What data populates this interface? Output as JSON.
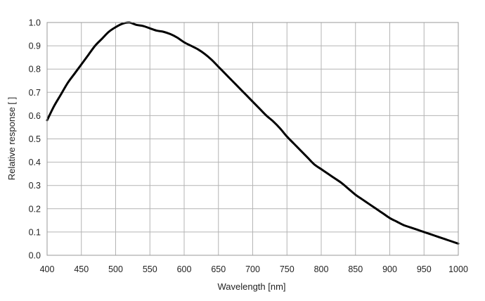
{
  "chart_data": {
    "type": "line",
    "title": "",
    "xlabel": "Wavelength [nm]",
    "ylabel": "Relative response [ ]",
    "xlim": [
      400,
      1000
    ],
    "ylim": [
      0,
      1.0
    ],
    "x_ticks": [
      400,
      450,
      500,
      550,
      600,
      650,
      700,
      750,
      800,
      850,
      900,
      950,
      1000
    ],
    "x_tick_labels": [
      "400",
      "450",
      "500",
      "550",
      "600",
      "650",
      "700",
      "750",
      "800",
      "850",
      "900",
      "950",
      "1000"
    ],
    "y_ticks": [
      0,
      0.1,
      0.2,
      0.3,
      0.4,
      0.5,
      0.6,
      0.7,
      0.8,
      0.9,
      1.0
    ],
    "y_tick_labels": [
      "0.0",
      "0.1",
      "0.2",
      "0.3",
      "0.4",
      "0.5",
      "0.6",
      "0.7",
      "0.8",
      "0.9",
      "1.0"
    ],
    "grid": true,
    "legend": "none",
    "colors": {
      "line": "#000000",
      "grid": "#b4b4b4",
      "frame": "#9a9a9a"
    },
    "series": [
      {
        "x": [
          400,
          410,
          420,
          430,
          440,
          450,
          460,
          470,
          480,
          490,
          500,
          510,
          520,
          530,
          540,
          550,
          560,
          570,
          580,
          590,
          600,
          610,
          620,
          630,
          640,
          650,
          660,
          670,
          680,
          690,
          700,
          710,
          720,
          730,
          740,
          750,
          760,
          770,
          780,
          790,
          800,
          810,
          820,
          830,
          840,
          850,
          860,
          870,
          880,
          890,
          900,
          910,
          920,
          930,
          940,
          950,
          960,
          970,
          980,
          990,
          1000
        ],
        "y": [
          0.58,
          0.64,
          0.69,
          0.74,
          0.78,
          0.82,
          0.86,
          0.9,
          0.93,
          0.96,
          0.98,
          0.995,
          1.0,
          0.99,
          0.985,
          0.975,
          0.965,
          0.96,
          0.95,
          0.935,
          0.915,
          0.9,
          0.885,
          0.865,
          0.84,
          0.81,
          0.78,
          0.75,
          0.72,
          0.69,
          0.66,
          0.63,
          0.6,
          0.575,
          0.545,
          0.51,
          0.48,
          0.45,
          0.42,
          0.39,
          0.37,
          0.35,
          0.33,
          0.31,
          0.285,
          0.26,
          0.24,
          0.22,
          0.2,
          0.18,
          0.16,
          0.145,
          0.13,
          0.12,
          0.11,
          0.1,
          0.09,
          0.08,
          0.07,
          0.06,
          0.05
        ]
      }
    ]
  }
}
